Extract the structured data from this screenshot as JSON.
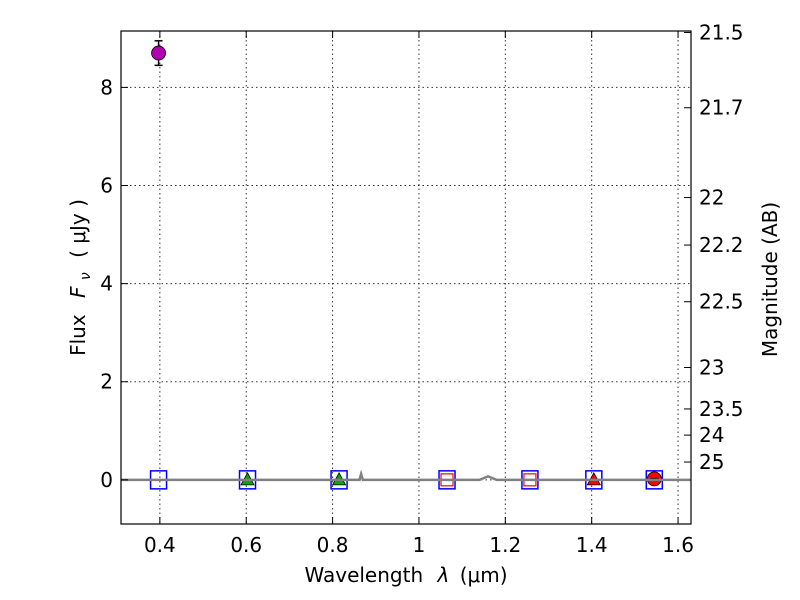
{
  "chart_data": {
    "type": "scatter",
    "title": "",
    "xlabel": "Wavelength",
    "xlabel_symbol": "λ",
    "xlabel_unit": "(μm)",
    "ylabel": "Flux",
    "ylabel_symbol": "F",
    "ylabel_subscript": "ν",
    "ylabel_unit": "( μJy )",
    "y2label": "Magnitude (AB)",
    "xlim": [
      0.31,
      1.63
    ],
    "ylim": [
      -0.9,
      9.15
    ],
    "xticks": [
      0.4,
      0.6,
      0.8,
      1.0,
      1.2,
      1.4,
      1.6
    ],
    "xtick_labels": [
      "0.4",
      "0.6",
      "0.8",
      "1",
      "1.2",
      "1.4",
      "1.6"
    ],
    "yticks": [
      0,
      2,
      4,
      6,
      8
    ],
    "ytick_labels": [
      "0",
      "2",
      "4",
      "6",
      "8"
    ],
    "y2_magnitudes": [
      "21.5",
      "21.7",
      "22",
      "22.2",
      "22.5",
      "23",
      "23.5",
      "24",
      "25"
    ],
    "grid": true,
    "colors": {
      "magenta": "#b000b0",
      "green": "#00aa00",
      "red": "#ff0000",
      "blue": "#0000ff",
      "spectrum": "#808080"
    },
    "series": [
      {
        "name": "detection",
        "marker": "circle",
        "color": "#b000b0",
        "points": [
          {
            "x": 0.397,
            "y": 8.7,
            "yerr": 0.25
          }
        ]
      },
      {
        "name": "upper-limits-blue-squares",
        "marker": "square-open",
        "color": "#0000ff",
        "points": [
          {
            "x": 0.397,
            "y": 0.0
          },
          {
            "x": 0.603,
            "y": 0.0
          },
          {
            "x": 0.815,
            "y": 0.0
          },
          {
            "x": 1.065,
            "y": 0.0
          },
          {
            "x": 1.257,
            "y": 0.0
          },
          {
            "x": 1.405,
            "y": 0.0
          },
          {
            "x": 1.545,
            "y": 0.0
          }
        ]
      },
      {
        "name": "green-triangles",
        "marker": "triangle",
        "color": "#00aa00",
        "points": [
          {
            "x": 0.603,
            "y": 0.0
          },
          {
            "x": 0.815,
            "y": 0.0
          }
        ]
      },
      {
        "name": "red-open-squares",
        "marker": "square-open-small",
        "color": "#ff0000",
        "points": [
          {
            "x": 1.065,
            "y": 0.0
          },
          {
            "x": 1.257,
            "y": 0.0
          }
        ]
      },
      {
        "name": "red-triangle",
        "marker": "triangle",
        "color": "#ff0000",
        "points": [
          {
            "x": 1.405,
            "y": 0.0
          }
        ]
      },
      {
        "name": "red-circle",
        "marker": "circle",
        "color": "#ff0000",
        "points": [
          {
            "x": 1.545,
            "y": 0.02
          }
        ]
      },
      {
        "name": "model-spectrum",
        "marker": "line",
        "color": "#808080",
        "x": [
          0.31,
          0.5,
          0.7,
          0.85,
          0.862,
          0.866,
          0.87,
          1.0,
          1.14,
          1.16,
          1.18,
          1.3,
          1.5,
          1.63
        ],
        "y": [
          0.0,
          0.0,
          0.0,
          0.0,
          0.0,
          0.12,
          0.0,
          0.0,
          0.0,
          0.07,
          0.0,
          0.0,
          0.0,
          0.0
        ]
      }
    ]
  }
}
